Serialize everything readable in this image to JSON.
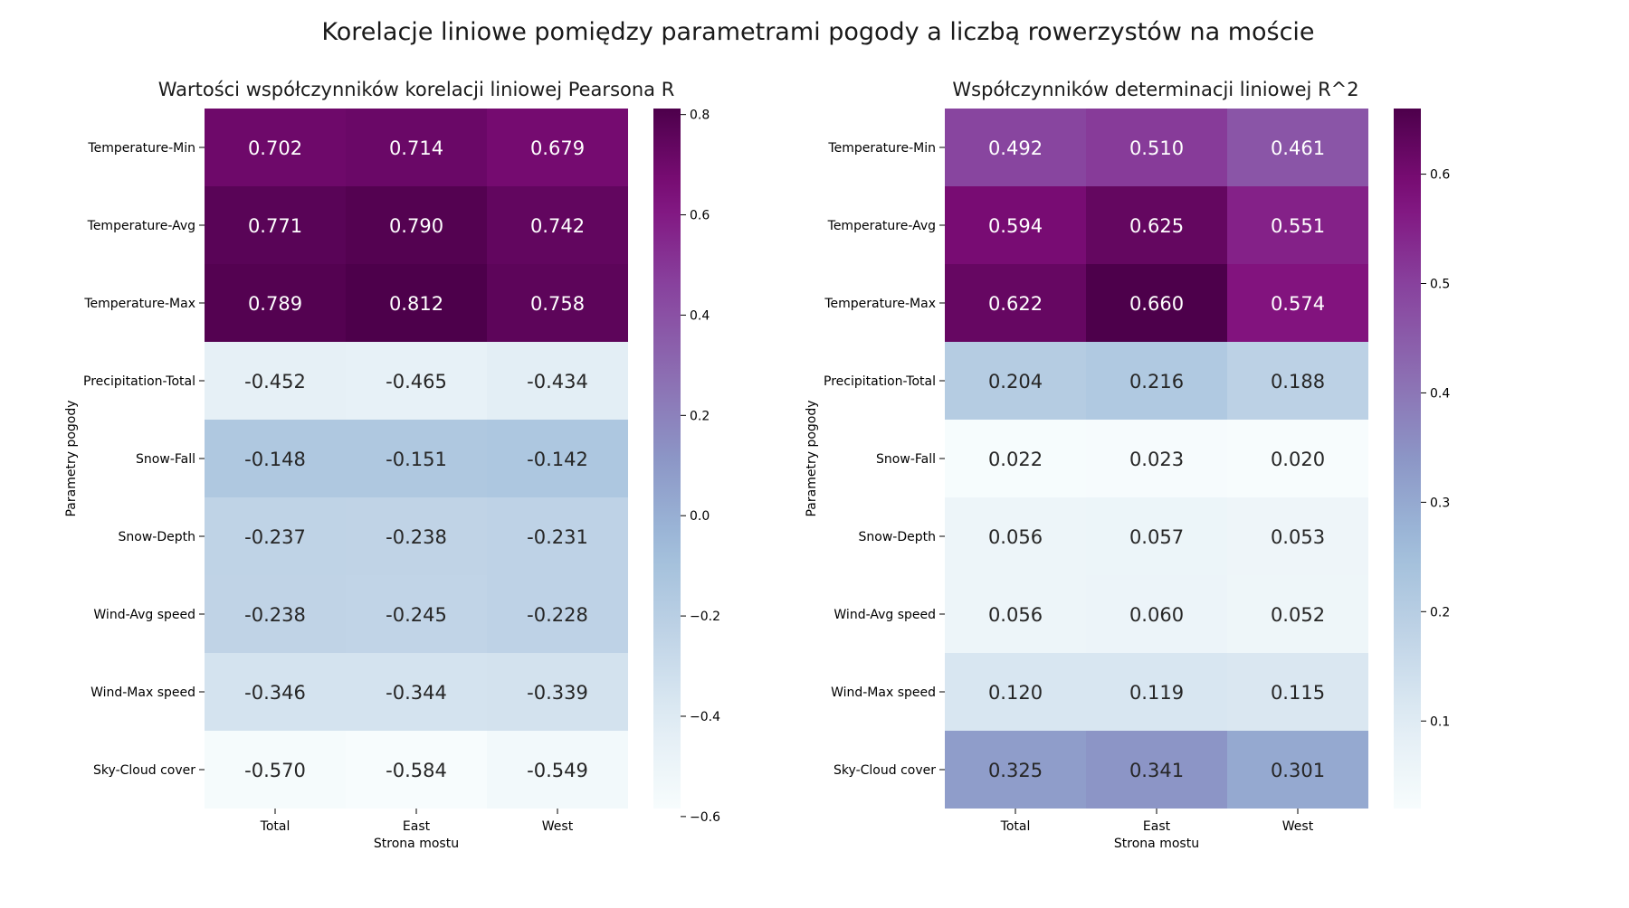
{
  "figure": {
    "title": "Korelacje liniowe pomiędzy parametrami pogody a liczbą rowerzystów na moście"
  },
  "chart_data": [
    {
      "type": "heatmap",
      "title": "Wartości współczynników korelacji liniowej Pearsona R",
      "xlabel": "Strona mostu",
      "ylabel": "Parametry pogody",
      "x_categories": [
        "Total",
        "East",
        "West"
      ],
      "y_categories": [
        "Temperature-Min",
        "Temperature-Avg",
        "Temperature-Max",
        "Precipitation-Total",
        "Snow-Fall",
        "Snow-Depth",
        "Wind-Avg speed",
        "Wind-Max speed",
        "Sky-Cloud cover"
      ],
      "values": [
        [
          0.702,
          0.714,
          0.679
        ],
        [
          0.771,
          0.79,
          0.742
        ],
        [
          0.789,
          0.812,
          0.758
        ],
        [
          -0.452,
          -0.465,
          -0.434
        ],
        [
          -0.148,
          -0.151,
          -0.142
        ],
        [
          -0.237,
          -0.238,
          -0.231
        ],
        [
          -0.238,
          -0.245,
          -0.228
        ],
        [
          -0.346,
          -0.344,
          -0.339
        ],
        [
          -0.57,
          -0.584,
          -0.549
        ]
      ],
      "colormap": "BuPu",
      "vmin": -0.584,
      "vmax": 0.812,
      "colorbar_ticks": [
        -0.6,
        -0.4,
        -0.2,
        0.0,
        0.2,
        0.4,
        0.6,
        0.8
      ],
      "colorbar_ticklabels": [
        "−0.6",
        "−0.4",
        "−0.2",
        "0.0",
        "0.2",
        "0.4",
        "0.6",
        "0.8"
      ]
    },
    {
      "type": "heatmap",
      "title": "Współczynników determinacji liniowej R^2",
      "xlabel": "Strona mostu",
      "ylabel": "Parametry pogody",
      "x_categories": [
        "Total",
        "East",
        "West"
      ],
      "y_categories": [
        "Temperature-Min",
        "Temperature-Avg",
        "Temperature-Max",
        "Precipitation-Total",
        "Snow-Fall",
        "Snow-Depth",
        "Wind-Avg speed",
        "Wind-Max speed",
        "Sky-Cloud cover"
      ],
      "values": [
        [
          0.492,
          0.51,
          0.461
        ],
        [
          0.594,
          0.625,
          0.551
        ],
        [
          0.622,
          0.66,
          0.574
        ],
        [
          0.204,
          0.216,
          0.188
        ],
        [
          0.022,
          0.023,
          0.02
        ],
        [
          0.056,
          0.057,
          0.053
        ],
        [
          0.056,
          0.06,
          0.052
        ],
        [
          0.12,
          0.119,
          0.115
        ],
        [
          0.325,
          0.341,
          0.301
        ]
      ],
      "colormap": "BuPu",
      "vmin": 0.02,
      "vmax": 0.66,
      "colorbar_ticks": [
        0.1,
        0.2,
        0.3,
        0.4,
        0.5,
        0.6
      ],
      "colorbar_ticklabels": [
        "0.1",
        "0.2",
        "0.3",
        "0.4",
        "0.5",
        "0.6"
      ]
    }
  ]
}
